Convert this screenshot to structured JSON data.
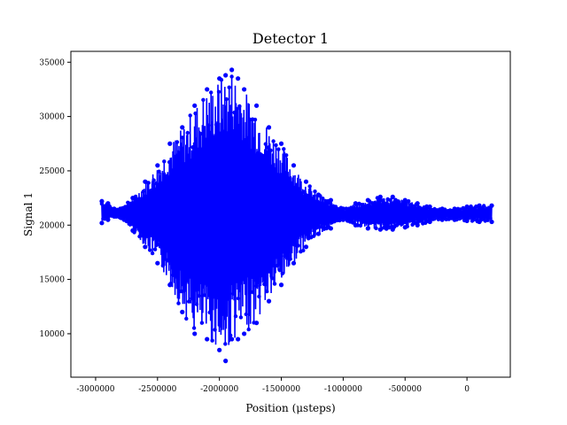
{
  "chart_data": {
    "type": "line",
    "title": "Detector 1",
    "xlabel": "Position (μsteps)",
    "ylabel": "Signal 1",
    "xlim": [
      -3200000,
      350000
    ],
    "ylim": [
      6000,
      36000
    ],
    "x_ticks": [
      -3000000,
      -2500000,
      -2000000,
      -1500000,
      -1000000,
      -500000,
      0
    ],
    "x_tick_labels": [
      "-3000000",
      "-2500000",
      "-2000000",
      "-1500000",
      "-1000000",
      "-500000",
      "0"
    ],
    "y_ticks": [
      10000,
      15000,
      20000,
      25000,
      30000,
      35000
    ],
    "y_tick_labels": [
      "10000",
      "15000",
      "20000",
      "25000",
      "30000",
      "35000"
    ],
    "grid": false,
    "series": [
      {
        "color": "#0000ff",
        "marker": "circle",
        "envelope_note": "dense oscillating signal; points describe upper and lower envelope",
        "x": [
          -2950000,
          -2900000,
          -2850000,
          -2800000,
          -2700000,
          -2600000,
          -2500000,
          -2400000,
          -2300000,
          -2200000,
          -2100000,
          -2000000,
          -1950000,
          -1900000,
          -1850000,
          -1800000,
          -1700000,
          -1600000,
          -1500000,
          -1400000,
          -1300000,
          -1200000,
          -1100000,
          -1000000,
          -900000,
          -800000,
          -700000,
          -600000,
          -500000,
          -400000,
          -300000,
          -200000,
          -100000,
          0,
          100000,
          200000
        ],
        "upper": [
          22200,
          22000,
          21500,
          21500,
          22500,
          24000,
          25500,
          27500,
          29000,
          31000,
          32500,
          33500,
          33800,
          34300,
          33500,
          32500,
          31000,
          29000,
          27500,
          25500,
          24000,
          22800,
          22300,
          21500,
          22000,
          22300,
          22600,
          22600,
          22300,
          22000,
          21700,
          21500,
          21500,
          21700,
          21800,
          21800
        ],
        "lower": [
          20200,
          20500,
          20800,
          20700,
          19500,
          18000,
          16500,
          14500,
          12000,
          10000,
          9500,
          8500,
          7500,
          9500,
          9500,
          10000,
          11000,
          13000,
          14500,
          16500,
          18000,
          19200,
          19700,
          20500,
          20000,
          19700,
          19600,
          19600,
          19800,
          20000,
          20300,
          20500,
          20500,
          20400,
          20300,
          20300
        ]
      }
    ]
  }
}
